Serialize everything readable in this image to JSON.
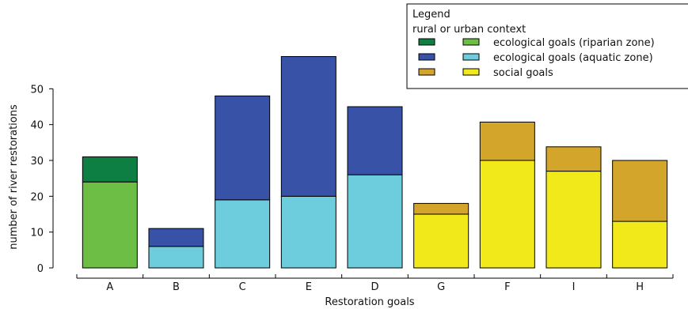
{
  "chart_data": {
    "type": "bar",
    "stacked": true,
    "categories": [
      "A",
      "B",
      "C",
      "E",
      "D",
      "G",
      "F",
      "I",
      "H"
    ],
    "group_of_category": [
      "riparian",
      "aquatic",
      "aquatic",
      "aquatic",
      "aquatic",
      "social",
      "social",
      "social",
      "social"
    ],
    "series": [
      {
        "name": "ecological goals (riparian zone)",
        "values": [
          24,
          6,
          19,
          20,
          26,
          15,
          30,
          27,
          13
        ]
      },
      {
        "name": "rural or urban context",
        "values": [
          7,
          5,
          29,
          39,
          19,
          3,
          10.7,
          6.8,
          17
        ]
      }
    ],
    "xlabel": "Restoration goals",
    "ylabel": "number of river restorations",
    "ylim": [
      0,
      60
    ],
    "yticks": [
      0,
      10,
      20,
      30,
      40,
      50
    ],
    "grid": false,
    "legend": {
      "title": "Legend",
      "subtitle": "rural or urban context",
      "placement": "top-right",
      "entries": [
        {
          "context_color": "#0e7f43",
          "goal_color": "#6dbe45",
          "label": "ecological goals (riparian zone)"
        },
        {
          "context_color": "#3752a6",
          "goal_color": "#6dcddc",
          "label": "ecological goals (aquatic zone)"
        },
        {
          "context_color": "#d4a52b",
          "goal_color": "#f2e91a",
          "label": "social goals"
        }
      ]
    },
    "colors": {
      "riparian": {
        "base": "#6dbe45",
        "context": "#0e7f43"
      },
      "aquatic": {
        "base": "#6dcddc",
        "context": "#3752a6"
      },
      "social": {
        "base": "#f2e91a",
        "context": "#d4a52b"
      }
    }
  }
}
